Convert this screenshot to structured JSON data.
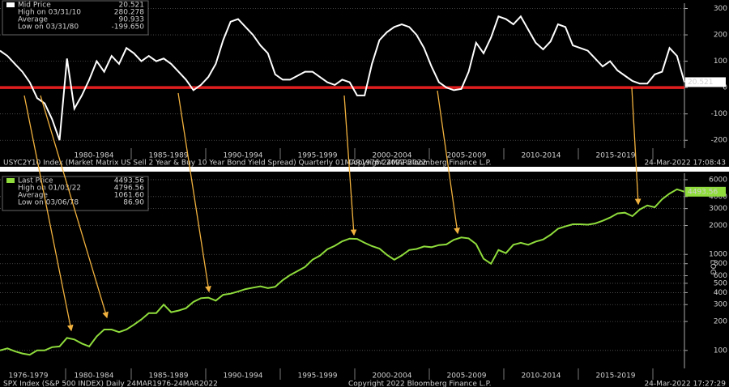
{
  "chart_data": [
    {
      "type": "line",
      "series": [
        {
          "name": "Mid Price",
          "color": "#ffffff",
          "values": [
            140,
            120,
            90,
            60,
            20,
            -40,
            -60,
            -120,
            -200,
            110,
            -80,
            -30,
            30,
            100,
            60,
            120,
            90,
            150,
            130,
            100,
            120,
            100,
            110,
            90,
            60,
            30,
            -10,
            10,
            40,
            90,
            180,
            250,
            260,
            230,
            200,
            160,
            130,
            50,
            30,
            30,
            45,
            60,
            60,
            40,
            20,
            10,
            30,
            20,
            -30,
            -30,
            90,
            180,
            210,
            230,
            240,
            230,
            200,
            150,
            80,
            20,
            0,
            -10,
            -5,
            60,
            170,
            130,
            190,
            270,
            260,
            240,
            270,
            220,
            170,
            145,
            175,
            240,
            230,
            160,
            150,
            140,
            110,
            80,
            100,
            65,
            45,
            25,
            15,
            15,
            50,
            60,
            150,
            120,
            20.521
          ]
        }
      ],
      "last_value": 20.521,
      "stats": [
        {
          "label": "High on 03/31/10",
          "value": 280.278
        },
        {
          "label": "Average",
          "value": 90.933
        },
        {
          "label": "Low on 03/31/80",
          "value": -199.65,
          "value_label": "-199.650"
        }
      ],
      "reference_line": {
        "value": 0,
        "color": "#e01e1e"
      },
      "ylim": [
        -230,
        320
      ],
      "yticks": [
        -200,
        -100,
        0,
        100,
        200,
        300
      ],
      "grid": true,
      "x_labels": [
        "1980-1984",
        "1985-1989",
        "1990-1994",
        "1995-1999",
        "2000-2004",
        "2005-2009",
        "2010-2014",
        "2015-2019"
      ],
      "footer": [
        "USYC2Y10 Index (Market Matrix US Sell 2 Year & Buy 10 Year Bond Yield Spread) Quarterly 01MAR1976-24MAR2022",
        "Copyright 2022 Bloomberg Finance L.P.",
        "24-Mar-2022 17:08:43"
      ]
    },
    {
      "type": "line",
      "series": [
        {
          "name": "Last Price",
          "color": "#8fdc3c",
          "values": [
            100,
            105,
            98,
            93,
            90,
            100,
            100,
            108,
            110,
            135,
            130,
            118,
            110,
            140,
            165,
            165,
            155,
            165,
            185,
            210,
            245,
            245,
            300,
            250,
            260,
            275,
            320,
            350,
            355,
            330,
            380,
            390,
            410,
            435,
            450,
            465,
            445,
            460,
            540,
            610,
            670,
            740,
            880,
            970,
            1130,
            1230,
            1370,
            1460,
            1450,
            1320,
            1220,
            1150,
            990,
            880,
            975,
            1110,
            1140,
            1210,
            1190,
            1250,
            1270,
            1420,
            1500,
            1470,
            1280,
            900,
            800,
            1110,
            1030,
            1260,
            1320,
            1260,
            1360,
            1430,
            1600,
            1850,
            1960,
            2060,
            2060,
            2040,
            2100,
            2240,
            2420,
            2670,
            2720,
            2500,
            2940,
            3230,
            3100,
            3750,
            4300,
            4770,
            4493.56
          ]
        }
      ],
      "last_value": 4493.56,
      "stats": [
        {
          "label": "High on 01/03/22",
          "value": 4796.56
        },
        {
          "label": "Average",
          "value": 1061.6,
          "value_label": "1061.60"
        },
        {
          "label": "Low on 03/06/78",
          "value": 86.9,
          "value_label": "86.90"
        }
      ],
      "log_scale": true,
      "y_label": "LOG",
      "ylim": [
        65,
        7000
      ],
      "yticks": [
        100,
        200,
        300,
        400,
        500,
        600,
        800,
        1000,
        2000,
        3000,
        4000,
        6000
      ],
      "grid": true,
      "x_labels": [
        "1976-1979",
        "1980-1984",
        "1985-1989",
        "1990-1994",
        "1995-1999",
        "2000-2004",
        "2005-2009",
        "2010-2014",
        "2015-2019"
      ],
      "footer": [
        "SPX Index (S&P 500 INDEX) Daily 24MAR1976-24MAR2022",
        "Copyright 2022 Bloomberg Finance L.P.",
        "24-Mar-2022 17:27:29"
      ]
    }
  ]
}
